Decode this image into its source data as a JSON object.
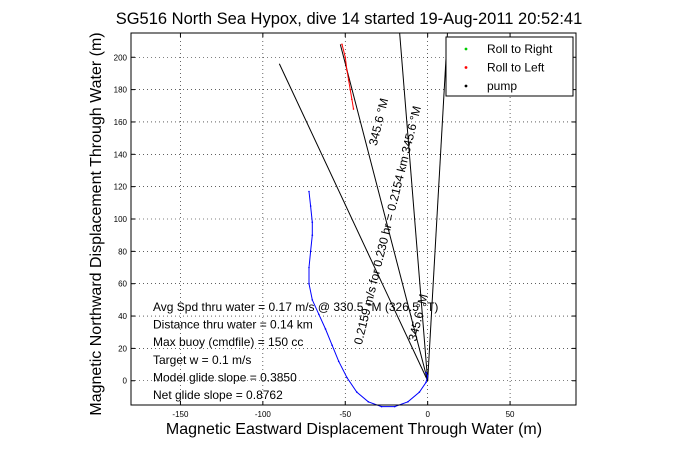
{
  "chart_data": {
    "type": "line",
    "title": "SG516 North Sea Hypox, dive 14 started 19-Aug-2011 20:52:41",
    "xlabel": "Magnetic Eastward Displacement Through Water (m)",
    "ylabel": "Magnetic Northward Displacement Through Water (m)",
    "xlim": [
      -180,
      90
    ],
    "ylim": [
      -15,
      215
    ],
    "xticks": [
      -150,
      -100,
      -50,
      0,
      50
    ],
    "yticks": [
      0,
      20,
      40,
      60,
      80,
      100,
      120,
      140,
      160,
      180,
      200
    ],
    "grid": true,
    "legend_position": "top-right",
    "legend": [
      {
        "label": "Roll to Right",
        "color": "#00cc00",
        "marker": "."
      },
      {
        "label": "Roll to Left",
        "color": "#ff0000",
        "marker": "."
      },
      {
        "label": "pump",
        "color": "#000000",
        "marker": "."
      }
    ],
    "series": [
      {
        "color": "#0000ff",
        "x": [
          -72,
          -71,
          -70,
          -70,
          -71,
          -72,
          -72,
          -70,
          -66,
          -62,
          -58,
          -54,
          -49,
          -43,
          -36,
          -28,
          -20,
          -12,
          -5,
          -1,
          0,
          -1
        ],
        "y": [
          117,
          108,
          98,
          90,
          80,
          70,
          60,
          50,
          41,
          32,
          22,
          12,
          2,
          -7,
          -13,
          -16,
          -16,
          -13,
          -7,
          -1,
          3,
          5
        ]
      },
      {
        "color": "#ff0000",
        "x": [
          -52,
          -50,
          -49,
          -48,
          -47,
          -46,
          -45
        ],
        "y": [
          208,
          200,
          192,
          186,
          180,
          174,
          168
        ]
      }
    ],
    "lines": [
      {
        "color": "#000000",
        "x": [
          0,
          -90
        ],
        "y": [
          0,
          196
        ]
      },
      {
        "color": "#000000",
        "x": [
          0,
          -17
        ],
        "y": [
          0,
          215
        ]
      },
      {
        "color": "#000000",
        "x": [
          0,
          12
        ],
        "y": [
          0,
          215
        ]
      },
      {
        "color": "#000000",
        "x": [
          0,
          -53
        ],
        "y": [
          0,
          208
        ]
      }
    ],
    "rotated_annotations": [
      {
        "text": "0.2159 m/s for 0.230 hr = 0.2154 km  345.6 °M",
        "x": -40,
        "y": 22
      },
      {
        "text": "345.6 °M",
        "x": -31,
        "y": 145
      },
      {
        "text": "345.6 °M",
        "x": -7,
        "y": 24
      }
    ],
    "stats": [
      "Avg Spd thru water =  0.17 m/s @ 330.5 °M (326.5 °T)",
      "Distance thru water =  0.14 km",
      "Max buoy (cmdfile) = 150 cc",
      "Target w = 0.1 m/s",
      "Model glide slope = 0.3850",
      "Net glide slope = 0.8762"
    ]
  }
}
